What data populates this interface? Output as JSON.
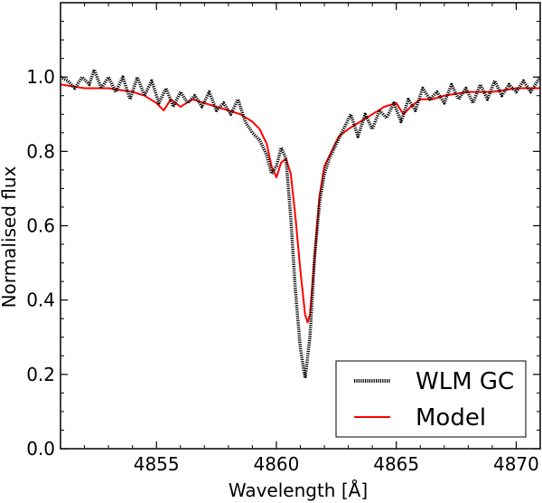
{
  "chart_data": {
    "type": "line",
    "xlabel": "Wavelength [Å]",
    "ylabel": "Normalised flux",
    "xlim": [
      4851,
      4871
    ],
    "ylim": [
      0.0,
      1.2
    ],
    "x_ticks": [
      4855,
      4860,
      4865,
      4870
    ],
    "y_ticks": [
      0.0,
      0.2,
      0.4,
      0.6,
      0.8,
      1.0
    ],
    "x_tick_labels": [
      "4855",
      "4860",
      "4865",
      "4870"
    ],
    "y_tick_labels": [
      "0.0",
      "0.2",
      "0.4",
      "0.6",
      "0.8",
      "1.0"
    ],
    "grid": false,
    "legend_position": "lower-right",
    "series": [
      {
        "name": "WLM GC",
        "color": "#000000",
        "style": "dotted",
        "x": [
          4851.0,
          4851.3,
          4851.6,
          4851.9,
          4852.2,
          4852.4,
          4852.7,
          4853.0,
          4853.3,
          4853.6,
          4853.9,
          4854.2,
          4854.5,
          4854.8,
          4855.1,
          4855.4,
          4855.7,
          4856.0,
          4856.3,
          4856.6,
          4856.9,
          4857.2,
          4857.5,
          4857.8,
          4858.1,
          4858.4,
          4858.7,
          4859.0,
          4859.3,
          4859.6,
          4859.8,
          4860.0,
          4860.2,
          4860.4,
          4860.6,
          4860.8,
          4861.0,
          4861.2,
          4861.4,
          4861.6,
          4861.8,
          4862.0,
          4862.2,
          4862.5,
          4862.8,
          4863.1,
          4863.4,
          4863.7,
          4864.0,
          4864.3,
          4864.6,
          4864.9,
          4865.2,
          4865.5,
          4865.8,
          4866.1,
          4866.4,
          4866.7,
          4867.0,
          4867.3,
          4867.6,
          4867.9,
          4868.2,
          4868.5,
          4868.8,
          4869.1,
          4869.4,
          4869.7,
          4870.0,
          4870.3,
          4870.6,
          4871.0
        ],
        "y": [
          1.0,
          0.99,
          0.97,
          1.0,
          0.98,
          1.02,
          0.97,
          1.0,
          0.96,
          1.0,
          0.94,
          1.0,
          0.95,
          0.99,
          0.93,
          0.97,
          0.92,
          0.96,
          0.93,
          0.95,
          0.92,
          0.96,
          0.91,
          0.93,
          0.9,
          0.94,
          0.88,
          0.85,
          0.83,
          0.79,
          0.74,
          0.76,
          0.81,
          0.78,
          0.62,
          0.42,
          0.27,
          0.19,
          0.3,
          0.52,
          0.66,
          0.74,
          0.78,
          0.82,
          0.86,
          0.9,
          0.84,
          0.9,
          0.86,
          0.91,
          0.89,
          0.93,
          0.88,
          0.94,
          0.91,
          0.97,
          0.94,
          0.96,
          0.93,
          0.98,
          0.94,
          0.97,
          0.93,
          0.98,
          0.94,
          0.99,
          0.95,
          0.98,
          0.96,
          0.99,
          0.96,
          1.0
        ]
      },
      {
        "name": "Model",
        "color": "#ff0000",
        "style": "solid",
        "x": [
          4851.0,
          4852.0,
          4853.0,
          4854.0,
          4854.5,
          4855.0,
          4855.3,
          4855.6,
          4856.0,
          4856.5,
          4857.0,
          4857.5,
          4858.0,
          4858.5,
          4859.0,
          4859.3,
          4859.6,
          4859.8,
          4860.0,
          4860.2,
          4860.4,
          4860.6,
          4860.8,
          4861.0,
          4861.2,
          4861.3,
          4861.4,
          4861.6,
          4861.8,
          4862.0,
          4862.3,
          4862.6,
          4863.0,
          4863.5,
          4864.0,
          4864.5,
          4865.0,
          4865.3,
          4865.6,
          4866.0,
          4866.5,
          4867.0,
          4868.0,
          4869.0,
          4870.0,
          4871.0
        ],
        "y": [
          0.98,
          0.97,
          0.97,
          0.96,
          0.95,
          0.93,
          0.91,
          0.94,
          0.92,
          0.94,
          0.93,
          0.92,
          0.91,
          0.9,
          0.88,
          0.86,
          0.82,
          0.76,
          0.73,
          0.77,
          0.78,
          0.74,
          0.62,
          0.48,
          0.36,
          0.34,
          0.36,
          0.52,
          0.68,
          0.76,
          0.8,
          0.84,
          0.86,
          0.88,
          0.9,
          0.92,
          0.93,
          0.9,
          0.92,
          0.94,
          0.94,
          0.95,
          0.96,
          0.96,
          0.97,
          0.97
        ]
      }
    ]
  }
}
